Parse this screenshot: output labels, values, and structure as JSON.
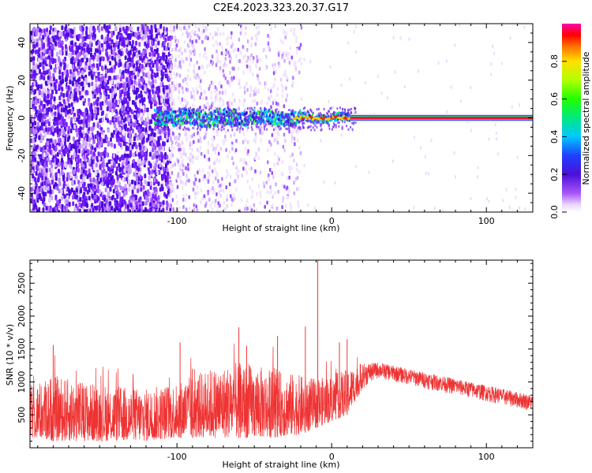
{
  "title": "C2E4.2023.323.20.37.G17",
  "chart_data": [
    {
      "type": "heatmap",
      "xlabel": "Height of straight line (km)",
      "ylabel": "Frequency (Hz)",
      "xlim": [
        -195,
        130
      ],
      "ylim": [
        -50,
        50
      ],
      "xticks": [
        -100,
        0,
        100
      ],
      "yticks": [
        -40,
        -20,
        0,
        20,
        40
      ],
      "colorbar": {
        "label": "Normalized spectral amplitude",
        "range": [
          0,
          1
        ],
        "ticks": [
          "0.0",
          "0.2",
          "0.4",
          "0.6",
          "0.8"
        ]
      },
      "features": {
        "noise_region_x": [
          -195,
          -105
        ],
        "faint_region_x": [
          -105,
          -20
        ],
        "signal_line_freq": 0,
        "signal_start_x": -115
      }
    },
    {
      "type": "line",
      "xlabel": "Height of straight line (km)",
      "ylabel": "SNR (10 * v/v)",
      "xlim": [
        -195,
        130
      ],
      "ylim": [
        0,
        2850
      ],
      "xticks": [
        -100,
        0,
        100
      ],
      "yticks": [
        500,
        1000,
        1500,
        2000,
        2500
      ],
      "series": [
        {
          "color": "#ee3333",
          "envelope_x": [
            -195,
            -180,
            -160,
            -140,
            -120,
            -100,
            -80,
            -60,
            -40,
            -20,
            -10,
            0,
            10,
            20,
            30,
            40,
            60,
            80,
            100,
            120,
            130
          ],
          "envelope_lo": [
            150,
            100,
            100,
            100,
            100,
            150,
            150,
            150,
            150,
            200,
            300,
            400,
            500,
            900,
            1050,
            1000,
            900,
            800,
            700,
            600,
            550
          ],
          "envelope_hi": [
            950,
            1100,
            1000,
            950,
            900,
            1000,
            1200,
            1300,
            1200,
            1100,
            1050,
            1100,
            1200,
            1280,
            1300,
            1250,
            1150,
            1050,
            950,
            850,
            800
          ],
          "spikes": [
            {
              "x": -180,
              "y": 1560
            },
            {
              "x": -98,
              "y": 1600
            },
            {
              "x": -90,
              "y": 1200
            },
            {
              "x": -60,
              "y": 1830
            },
            {
              "x": -55,
              "y": 1550
            },
            {
              "x": -35,
              "y": 1700
            },
            {
              "x": -17,
              "y": 1840
            },
            {
              "x": -9,
              "y": 2850
            },
            {
              "x": 5,
              "y": 1600
            },
            {
              "x": 10,
              "y": 1650
            }
          ]
        }
      ]
    }
  ]
}
